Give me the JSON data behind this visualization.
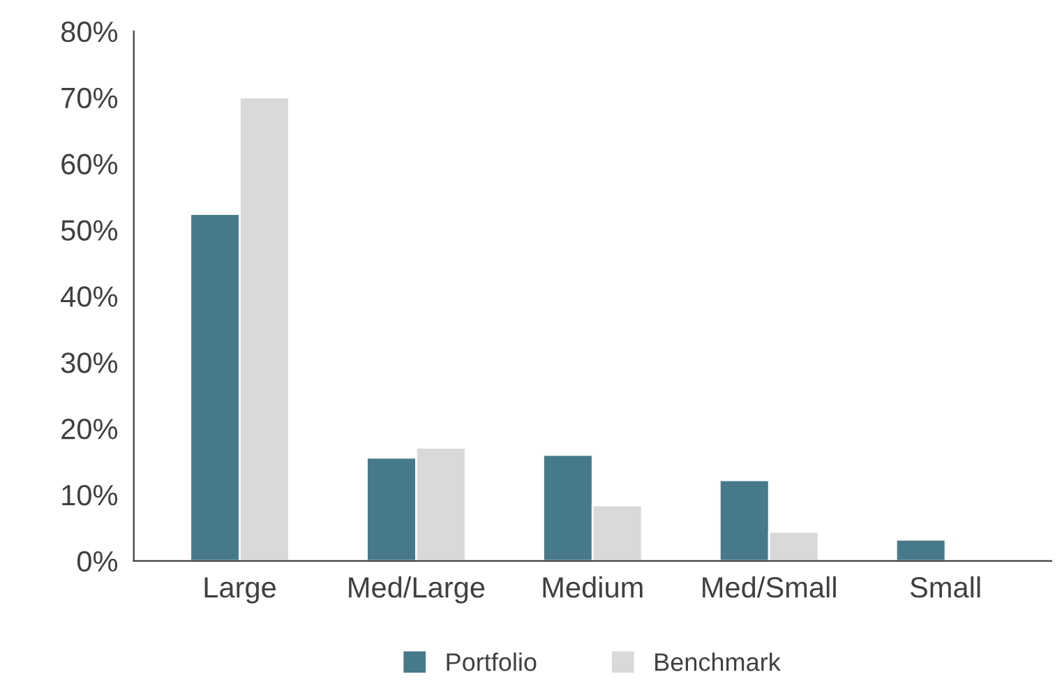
{
  "chart_data": {
    "type": "bar",
    "categories": [
      "Large",
      "Med/Large",
      "Medium",
      "Med/Small",
      "Small"
    ],
    "series": [
      {
        "name": "Portfolio",
        "color": "#467a8b",
        "values": [
          52.4,
          15.6,
          16.0,
          12.2,
          3.2
        ]
      },
      {
        "name": "Benchmark",
        "color": "#d9d9d9",
        "values": [
          70.0,
          17.1,
          8.4,
          4.4,
          null
        ]
      }
    ],
    "ylim": [
      0,
      80
    ],
    "yticks": [
      {
        "value": 0,
        "label": "0%"
      },
      {
        "value": 10,
        "label": "10%"
      },
      {
        "value": 20,
        "label": "20%"
      },
      {
        "value": 30,
        "label": "30%"
      },
      {
        "value": 40,
        "label": "40%"
      },
      {
        "value": 50,
        "label": "50%"
      },
      {
        "value": 60,
        "label": "60%"
      },
      {
        "value": 70,
        "label": "70%"
      },
      {
        "value": 80,
        "label": "80%"
      }
    ],
    "grid": false,
    "legend": "bottom"
  }
}
